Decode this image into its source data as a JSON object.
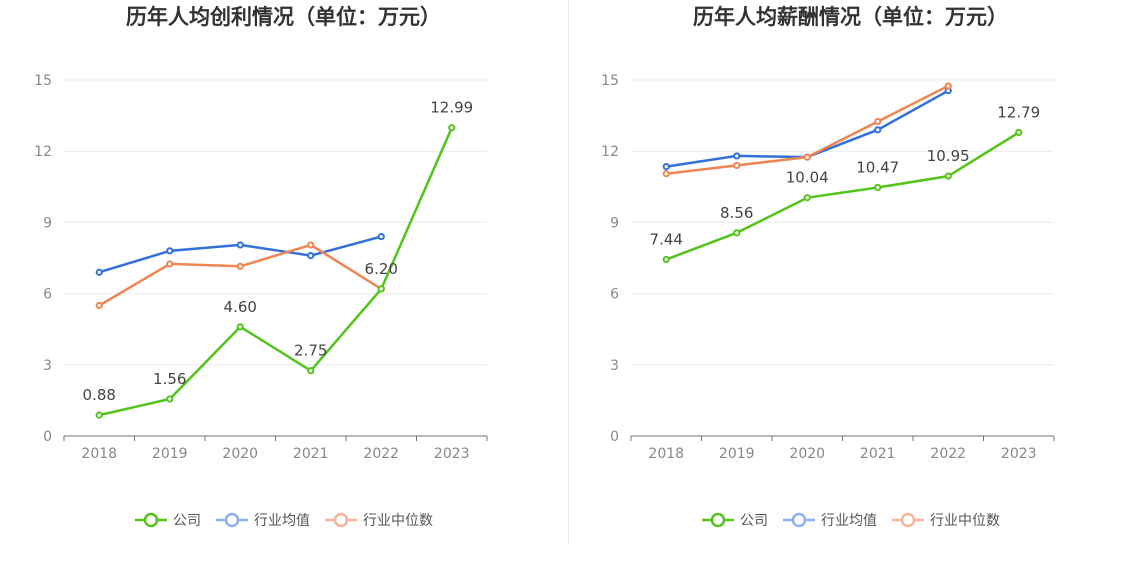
{
  "colors": {
    "company": "#52c41a",
    "avg": "#3370d9",
    "median": "#f08552"
  },
  "legend_swatches": {
    "company": "#52c41a",
    "avg": "#8fb0ea",
    "median": "#f5b49a"
  },
  "chart_data": [
    {
      "type": "line",
      "title": "历年人均创利情况（单位：万元）",
      "categories": [
        "2018",
        "2019",
        "2020",
        "2021",
        "2022",
        "2023"
      ],
      "ylim": [
        0,
        15
      ],
      "yticks": [
        0,
        3,
        6,
        9,
        12,
        15
      ],
      "grid": true,
      "legend_position": "bottom",
      "series": [
        {
          "name": "公司",
          "key": "company",
          "values": [
            0.88,
            1.56,
            4.6,
            2.75,
            6.2,
            12.99
          ],
          "labels": [
            "0.88",
            "1.56",
            "4.60",
            "2.75",
            "6.20",
            "12.99"
          ]
        },
        {
          "name": "行业均值",
          "key": "avg",
          "values": [
            6.9,
            7.8,
            8.05,
            7.6,
            8.4,
            null
          ]
        },
        {
          "name": "行业中位数",
          "key": "median",
          "values": [
            5.5,
            7.25,
            7.15,
            8.05,
            6.2,
            null
          ]
        }
      ]
    },
    {
      "type": "line",
      "title": "历年人均薪酬情况（单位：万元）",
      "categories": [
        "2018",
        "2019",
        "2020",
        "2021",
        "2022",
        "2023"
      ],
      "ylim": [
        0,
        15
      ],
      "yticks": [
        0,
        3,
        6,
        9,
        12,
        15
      ],
      "grid": true,
      "legend_position": "bottom",
      "series": [
        {
          "name": "公司",
          "key": "company",
          "values": [
            7.44,
            8.56,
            10.04,
            10.47,
            10.95,
            12.79
          ],
          "labels": [
            "7.44",
            "8.56",
            "10.04",
            "10.47",
            "10.95",
            "12.79"
          ]
        },
        {
          "name": "行业均值",
          "key": "avg",
          "values": [
            11.35,
            11.8,
            11.75,
            12.9,
            14.55,
            null
          ]
        },
        {
          "name": "行业中位数",
          "key": "median",
          "values": [
            11.05,
            11.4,
            11.75,
            13.25,
            14.75,
            null
          ]
        }
      ]
    }
  ]
}
